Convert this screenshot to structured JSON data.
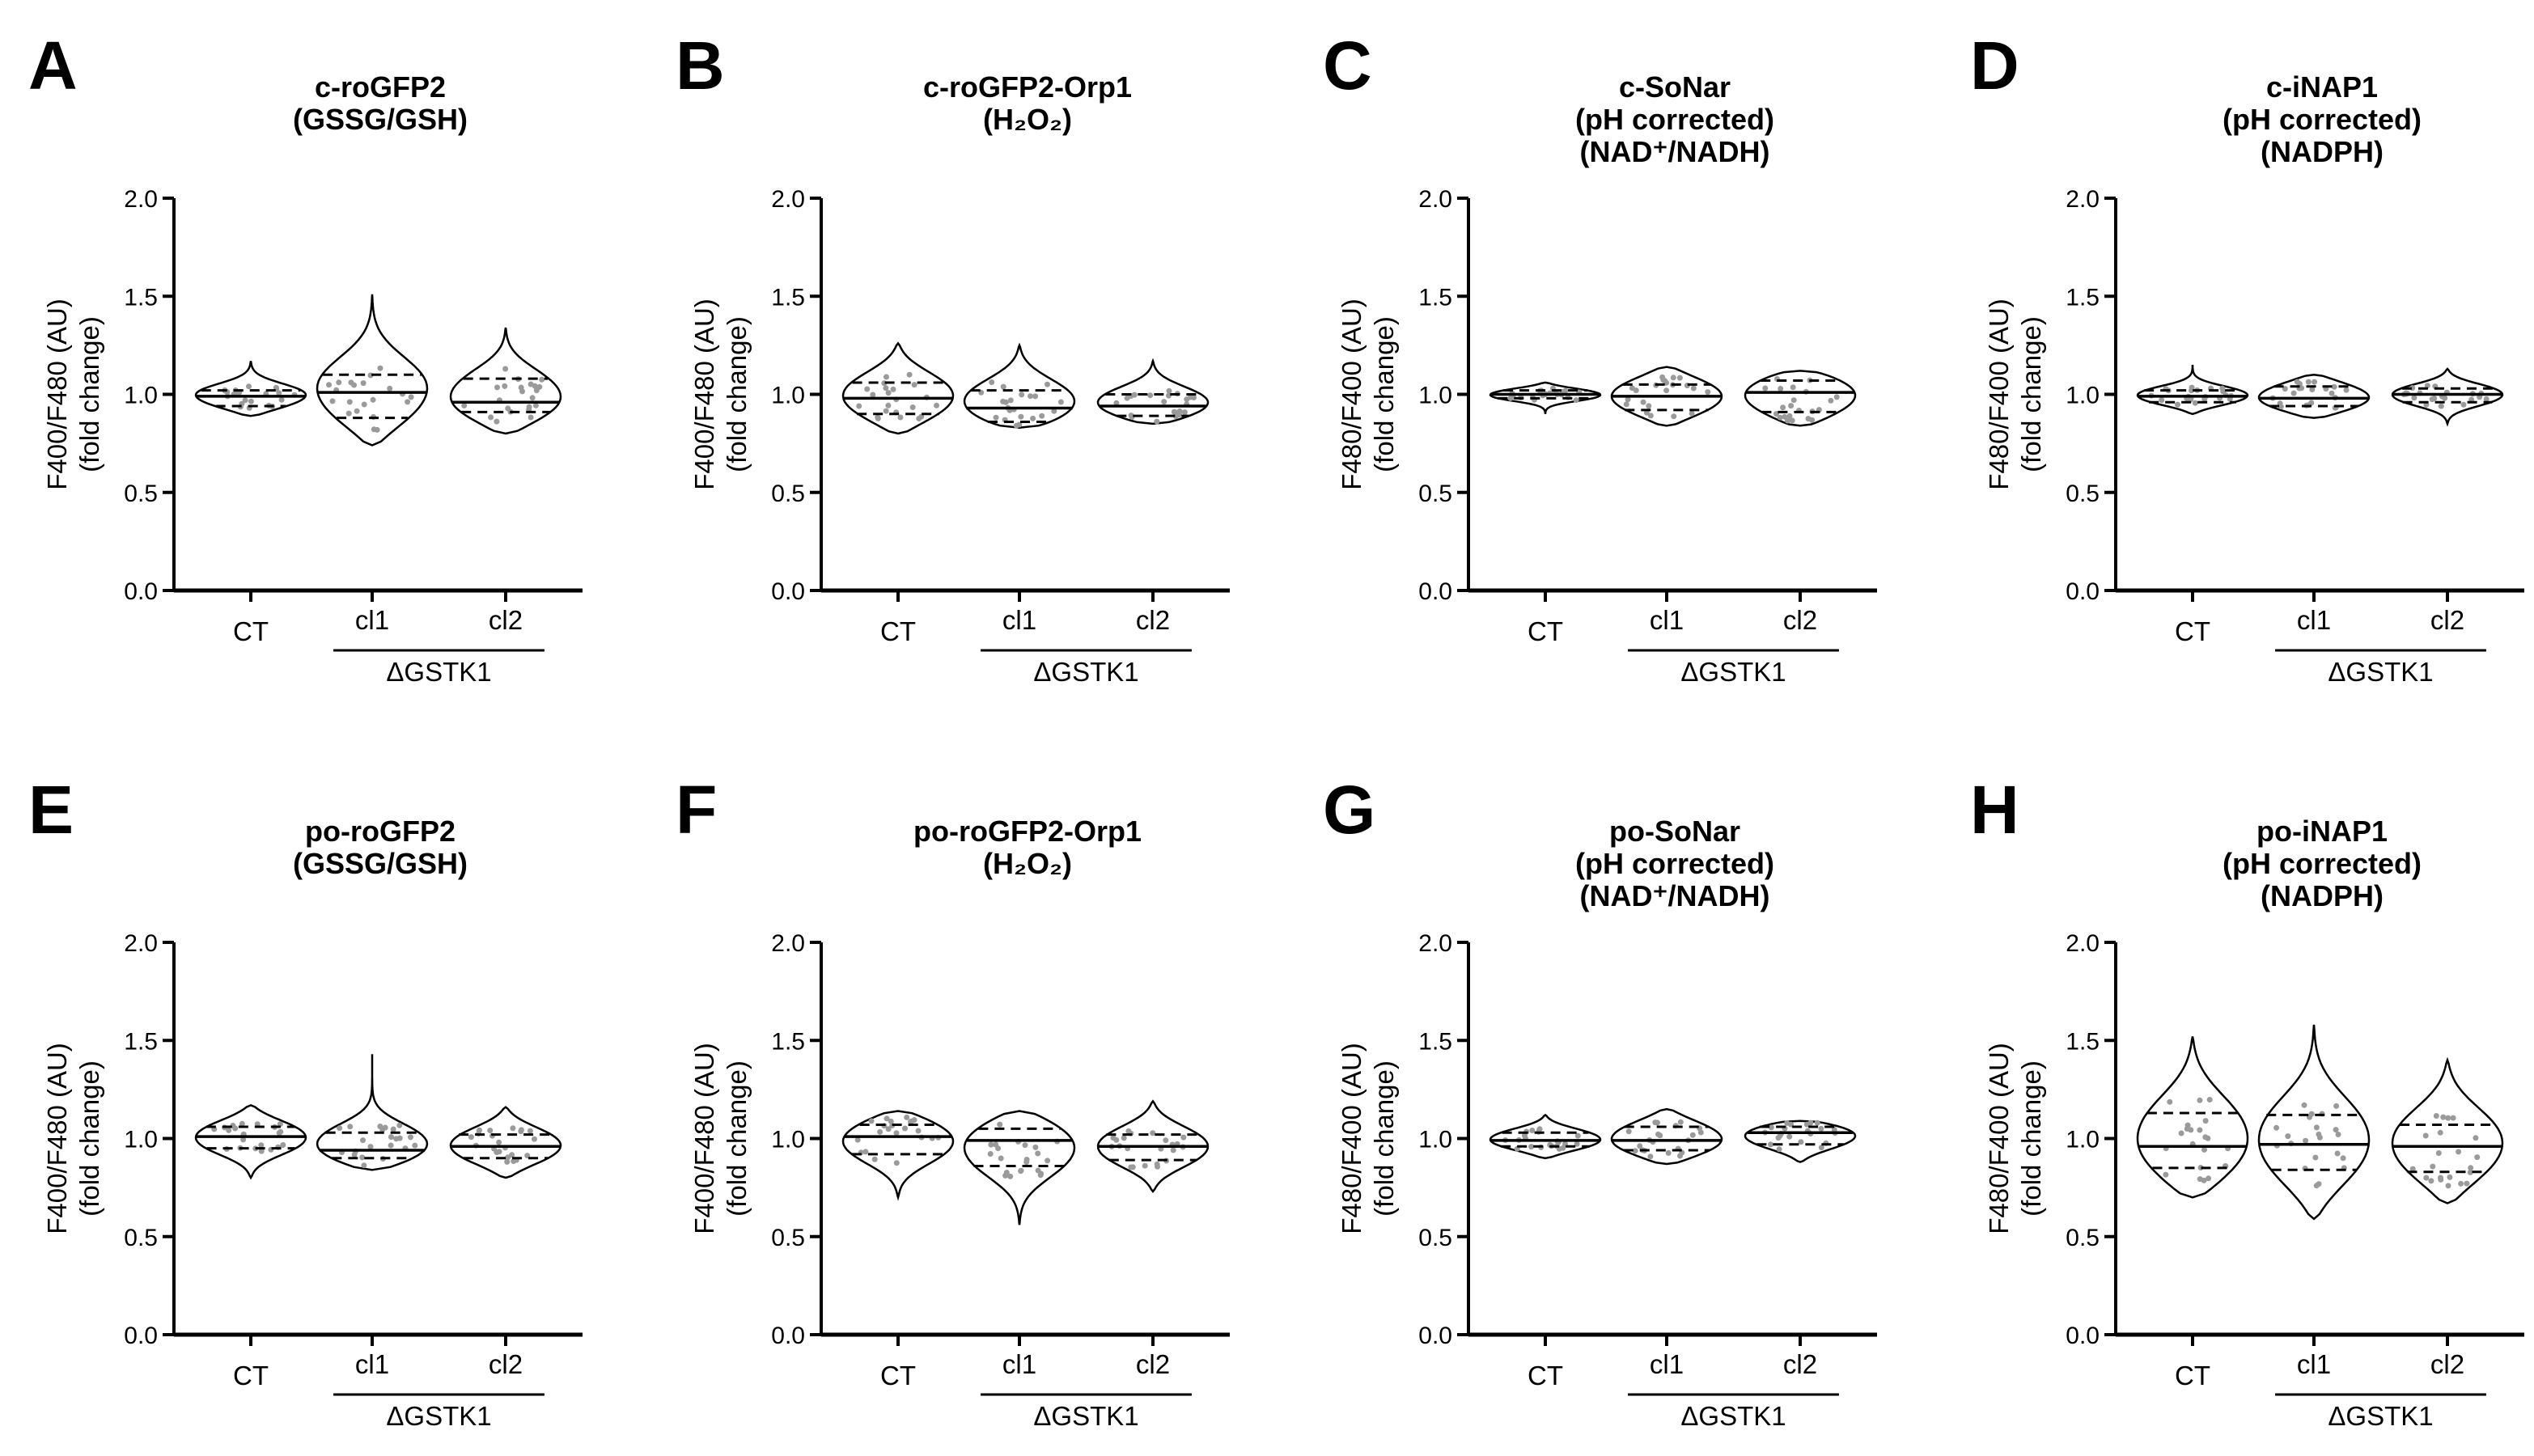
{
  "chart_data": [
    {
      "panel": "A",
      "type": "violin",
      "title": [
        "c-roGFP2",
        "(GSSG/GSH)"
      ],
      "ylabel": "F400/F480 (AU)",
      "ylabel2": "(fold change)",
      "ylim": [
        0,
        2.0
      ],
      "yticks": [
        "0.0",
        "0.5",
        "1.0",
        "1.5",
        "2.0"
      ],
      "categories": [
        "CT",
        "cl1",
        "cl2"
      ],
      "group_label": "ΔGSTK1",
      "series": [
        {
          "name": "CT",
          "min": 0.89,
          "max": 1.17,
          "q1": 0.94,
          "median": 0.99,
          "q3": 1.02
        },
        {
          "name": "cl1",
          "min": 0.74,
          "max": 1.51,
          "q1": 0.88,
          "median": 1.01,
          "q3": 1.1
        },
        {
          "name": "cl2",
          "min": 0.8,
          "max": 1.34,
          "q1": 0.91,
          "median": 0.96,
          "q3": 1.08
        }
      ]
    },
    {
      "panel": "B",
      "type": "violin",
      "title": [
        "c-roGFP2-Orp1",
        "(H₂O₂)"
      ],
      "ylabel": "F400/F480 (AU)",
      "ylabel2": "(fold change)",
      "ylim": [
        0,
        2.0
      ],
      "yticks": [
        "0.0",
        "0.5",
        "1.0",
        "1.5",
        "2.0"
      ],
      "categories": [
        "CT",
        "cl1",
        "cl2"
      ],
      "group_label": "ΔGSTK1",
      "series": [
        {
          "name": "CT",
          "min": 0.8,
          "max": 1.26,
          "q1": 0.9,
          "median": 0.98,
          "q3": 1.06
        },
        {
          "name": "cl1",
          "min": 0.83,
          "max": 1.25,
          "q1": 0.86,
          "median": 0.93,
          "q3": 1.02
        },
        {
          "name": "cl2",
          "min": 0.85,
          "max": 1.17,
          "q1": 0.89,
          "median": 0.94,
          "q3": 1.0
        }
      ]
    },
    {
      "panel": "C",
      "type": "violin",
      "title": [
        "c-SoNar",
        "(pH corrected)",
        "(NAD⁺/NADH)"
      ],
      "ylabel": "F480/F400 (AU)",
      "ylabel2": "(fold change)",
      "ylim": [
        0,
        2.0
      ],
      "yticks": [
        "0.0",
        "0.5",
        "1.0",
        "1.5",
        "2.0"
      ],
      "categories": [
        "CT",
        "cl1",
        "cl2"
      ],
      "group_label": "ΔGSTK1",
      "series": [
        {
          "name": "CT",
          "min": 0.9,
          "max": 1.06,
          "q1": 0.98,
          "median": 1.0,
          "q3": 1.02
        },
        {
          "name": "cl1",
          "min": 0.84,
          "max": 1.14,
          "q1": 0.92,
          "median": 0.99,
          "q3": 1.05
        },
        {
          "name": "cl2",
          "min": 0.84,
          "max": 1.12,
          "q1": 0.91,
          "median": 1.01,
          "q3": 1.07
        }
      ]
    },
    {
      "panel": "D",
      "type": "violin",
      "title": [
        "c-iNAP1",
        "(pH corrected)",
        "(NADPH)"
      ],
      "ylabel": "F480/F400 (AU)",
      "ylabel2": "(fold change)",
      "ylim": [
        0,
        2.0
      ],
      "yticks": [
        "0.0",
        "0.5",
        "1.0",
        "1.5",
        "2.0"
      ],
      "categories": [
        "CT",
        "cl1",
        "cl2"
      ],
      "group_label": "ΔGSTK1",
      "series": [
        {
          "name": "CT",
          "min": 0.9,
          "max": 1.15,
          "q1": 0.96,
          "median": 0.99,
          "q3": 1.02
        },
        {
          "name": "cl1",
          "min": 0.88,
          "max": 1.1,
          "q1": 0.94,
          "median": 0.98,
          "q3": 1.04
        },
        {
          "name": "cl2",
          "min": 0.85,
          "max": 1.13,
          "q1": 0.96,
          "median": 1.0,
          "q3": 1.03
        }
      ]
    },
    {
      "panel": "E",
      "type": "violin",
      "title": [
        "po-roGFP2",
        "(GSSG/GSH)"
      ],
      "ylabel": "F400/F480 (AU)",
      "ylabel2": "(fold change)",
      "ylim": [
        0,
        2.0
      ],
      "yticks": [
        "0.0",
        "0.5",
        "1.0",
        "1.5",
        "2.0"
      ],
      "categories": [
        "CT",
        "cl1",
        "cl2"
      ],
      "group_label": "ΔGSTK1",
      "series": [
        {
          "name": "CT",
          "min": 0.8,
          "max": 1.17,
          "q1": 0.95,
          "median": 1.01,
          "q3": 1.06
        },
        {
          "name": "cl1",
          "min": 0.84,
          "max": 1.43,
          "q1": 0.9,
          "median": 0.94,
          "q3": 1.03
        },
        {
          "name": "cl2",
          "min": 0.8,
          "max": 1.16,
          "q1": 0.9,
          "median": 0.96,
          "q3": 1.02
        }
      ]
    },
    {
      "panel": "F",
      "type": "violin",
      "title": [
        "po-roGFP2-Orp1",
        "(H₂O₂)"
      ],
      "ylabel": "F400/F480 (AU)",
      "ylabel2": "(fold change)",
      "ylim": [
        0,
        2.0
      ],
      "yticks": [
        "0.0",
        "0.5",
        "1.0",
        "1.5",
        "2.0"
      ],
      "categories": [
        "CT",
        "cl1",
        "cl2"
      ],
      "group_label": "ΔGSTK1",
      "series": [
        {
          "name": "CT",
          "min": 0.7,
          "max": 1.14,
          "q1": 0.92,
          "median": 1.01,
          "q3": 1.07
        },
        {
          "name": "cl1",
          "min": 0.56,
          "max": 1.14,
          "q1": 0.86,
          "median": 0.99,
          "q3": 1.05
        },
        {
          "name": "cl2",
          "min": 0.73,
          "max": 1.19,
          "q1": 0.89,
          "median": 0.96,
          "q3": 1.02
        }
      ]
    },
    {
      "panel": "G",
      "type": "violin",
      "title": [
        "po-SoNar",
        "(pH corrected)",
        "(NAD⁺/NADH)"
      ],
      "ylabel": "F480/F400 (AU)",
      "ylabel2": "(fold change)",
      "ylim": [
        0,
        2.0
      ],
      "yticks": [
        "0.0",
        "0.5",
        "1.0",
        "1.5",
        "2.0"
      ],
      "categories": [
        "CT",
        "cl1",
        "cl2"
      ],
      "group_label": "ΔGSTK1",
      "series": [
        {
          "name": "CT",
          "min": 0.9,
          "max": 1.12,
          "q1": 0.96,
          "median": 0.99,
          "q3": 1.03
        },
        {
          "name": "cl1",
          "min": 0.87,
          "max": 1.15,
          "q1": 0.94,
          "median": 0.99,
          "q3": 1.06
        },
        {
          "name": "cl2",
          "min": 0.88,
          "max": 1.09,
          "q1": 0.97,
          "median": 1.03,
          "q3": 1.06
        }
      ]
    },
    {
      "panel": "H",
      "type": "violin",
      "title": [
        "po-iNAP1",
        "(pH corrected)",
        "(NADPH)"
      ],
      "ylabel": "F480/F400 (AU)",
      "ylabel2": "(fold change)",
      "ylim": [
        0,
        2.0
      ],
      "yticks": [
        "0.0",
        "0.5",
        "1.0",
        "1.5",
        "2.0"
      ],
      "categories": [
        "CT",
        "cl1",
        "cl2"
      ],
      "group_label": "ΔGSTK1",
      "series": [
        {
          "name": "CT",
          "min": 0.7,
          "max": 1.52,
          "q1": 0.85,
          "median": 0.96,
          "q3": 1.13
        },
        {
          "name": "cl1",
          "min": 0.59,
          "max": 1.58,
          "q1": 0.84,
          "median": 0.97,
          "q3": 1.12
        },
        {
          "name": "cl2",
          "min": 0.67,
          "max": 1.4,
          "q1": 0.83,
          "median": 0.96,
          "q3": 1.07
        }
      ]
    }
  ]
}
